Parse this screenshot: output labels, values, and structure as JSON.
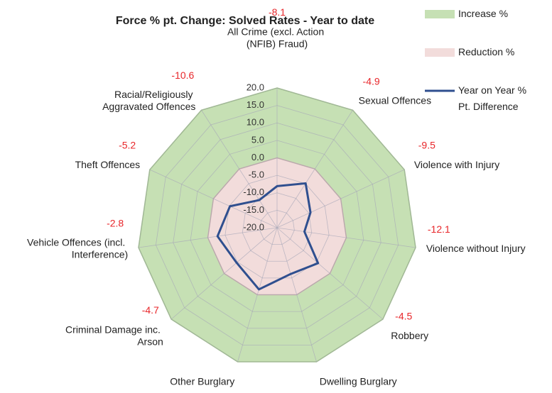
{
  "chart_data": {
    "type": "radar",
    "title": "Force % pt. Change: Solved Rates - Year to date",
    "categories": [
      "All Crime (excl. Action (NFIB) Fraud)",
      "Sexual Offences",
      "Violence with Injury",
      "Violence without Injury",
      "Robbery",
      "Dwelling Burglary",
      "Other Burglary",
      "Criminal Damage inc. Arson",
      "Vehicle Offences (incl. Interference)",
      "Theft Offences",
      "Racial/Religiously Aggravated Offences"
    ],
    "series": [
      {
        "name": "Increase %",
        "kind": "area",
        "color": "#c6e0b4",
        "values": [
          20,
          20,
          20,
          20,
          20,
          20,
          20,
          20,
          20,
          20,
          20
        ]
      },
      {
        "name": "Reduction %",
        "kind": "area",
        "color": "#f2dcdb",
        "values": [
          0,
          0,
          0,
          0,
          0,
          0,
          0,
          0,
          0,
          0,
          0
        ]
      },
      {
        "name": "Year on Year % Pt. Difference",
        "kind": "line",
        "color": "#2f4f8f",
        "values": [
          -8.1,
          -4.9,
          -9.5,
          -12.1,
          -4.5,
          -6.2,
          -1.6,
          -4.7,
          -2.8,
          -5.2,
          -10.6
        ]
      }
    ],
    "ylim": [
      -20,
      20
    ],
    "yticks": [
      {
        "value": -20,
        "label": "-20.0"
      },
      {
        "value": -15,
        "label": "-15.0"
      },
      {
        "value": -10,
        "label": "-10.0"
      },
      {
        "value": -5,
        "label": "-5.0"
      },
      {
        "value": 0,
        "label": "0.0"
      },
      {
        "value": 5,
        "label": "5.0"
      },
      {
        "value": 10,
        "label": "10.0"
      },
      {
        "value": 15,
        "label": "15.0"
      },
      {
        "value": 20,
        "label": "20.0"
      }
    ],
    "grid": true,
    "legend": "right"
  }
}
